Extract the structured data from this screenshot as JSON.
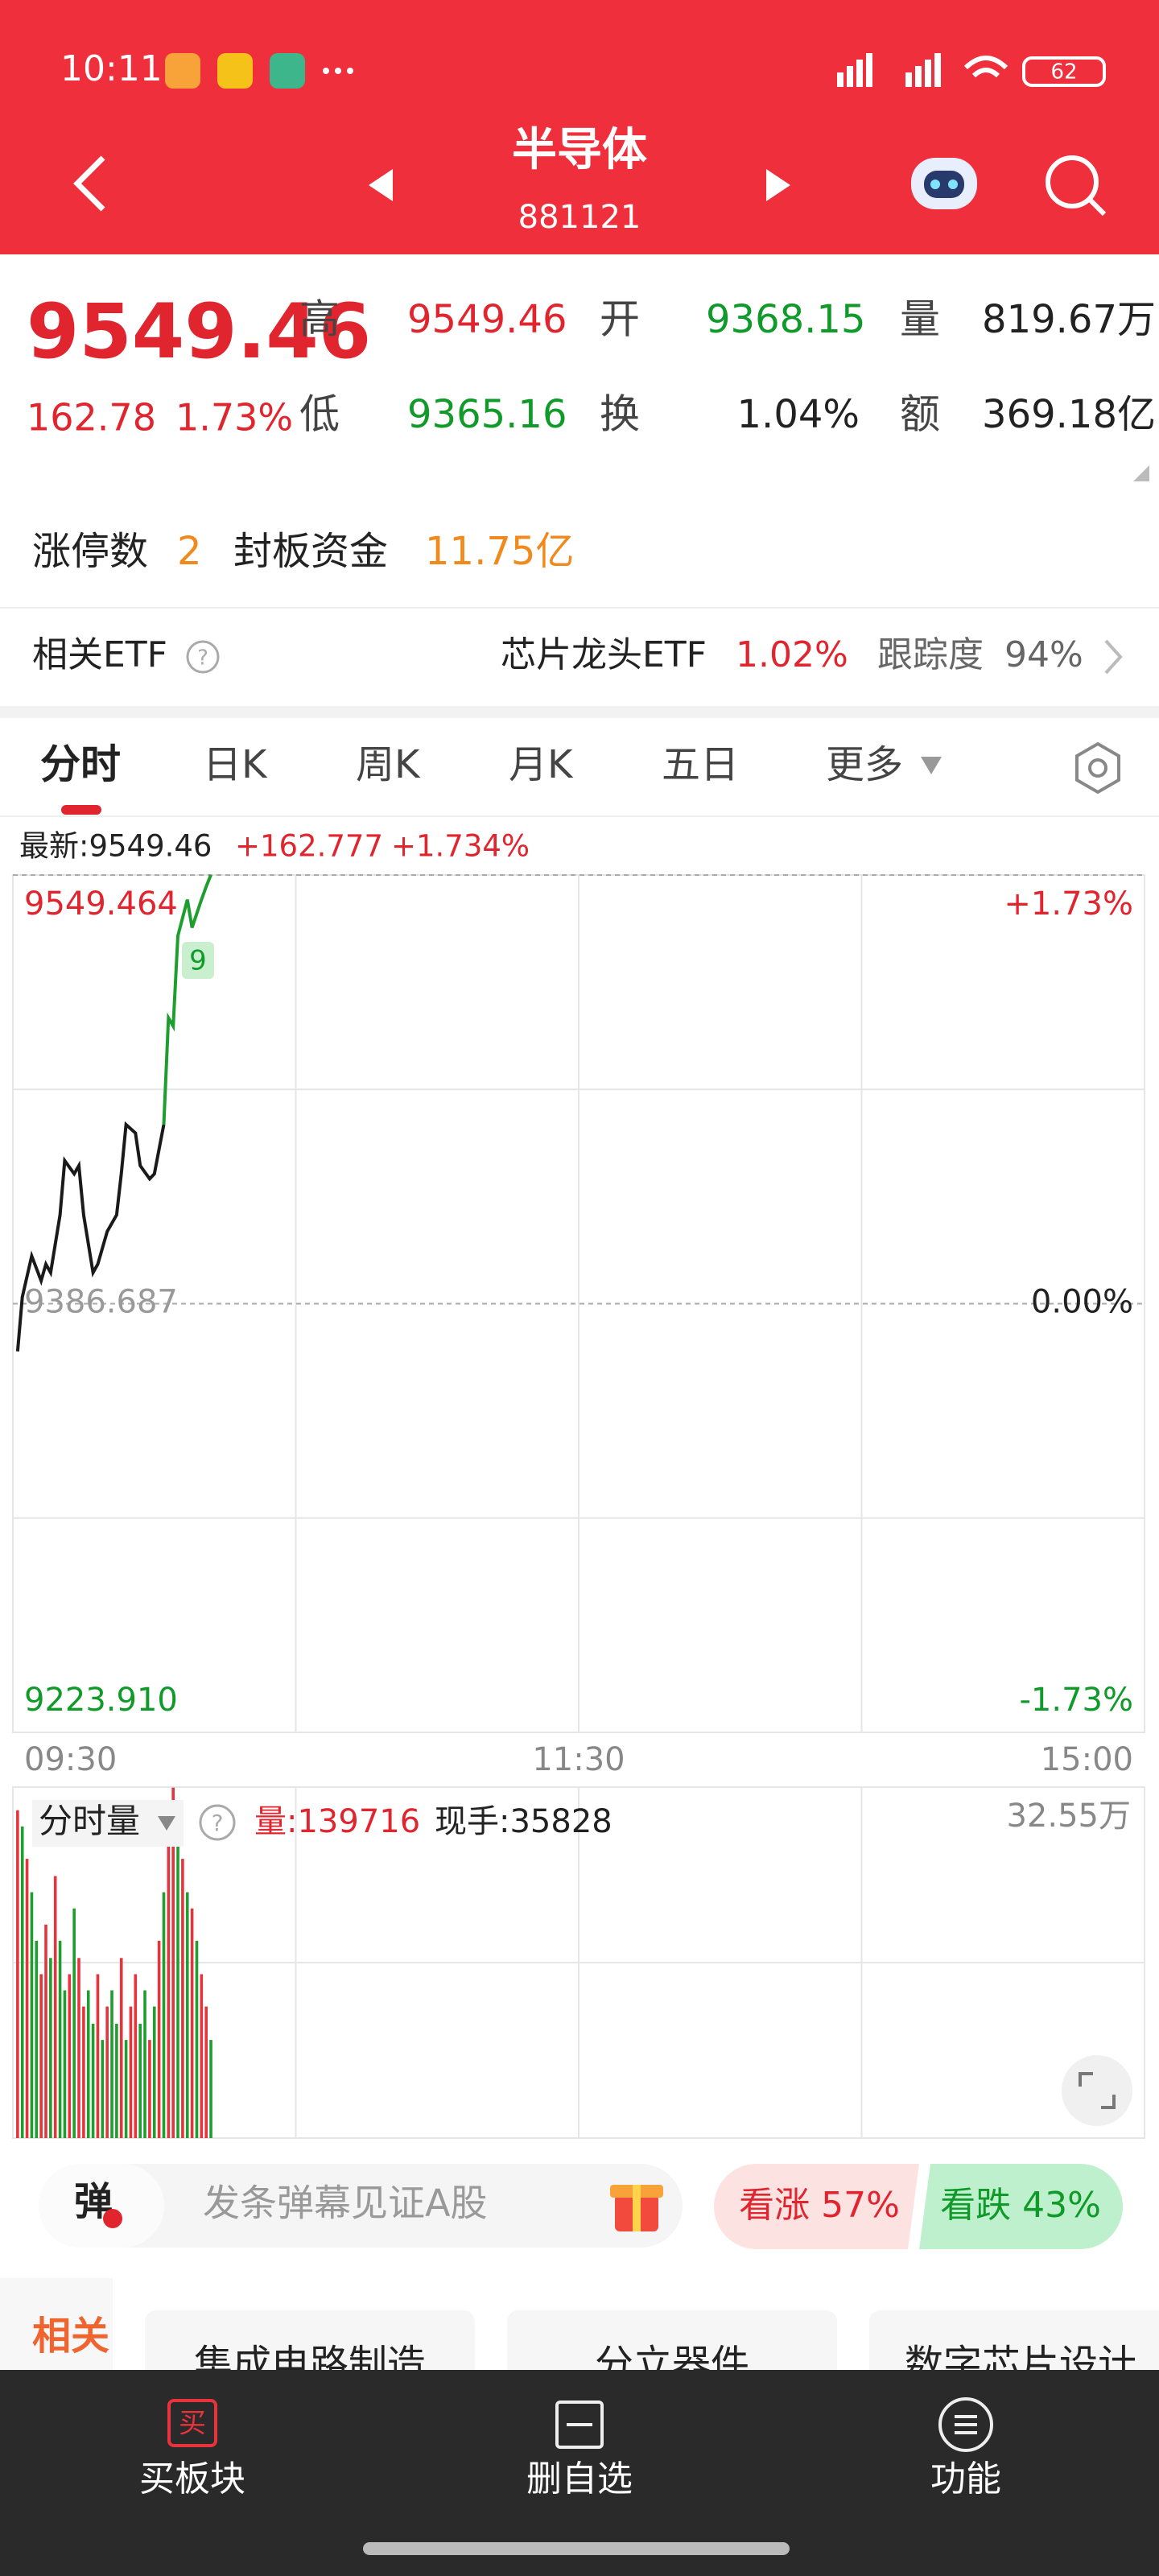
{
  "status_bar": {
    "time": "10:11",
    "battery": "62"
  },
  "header": {
    "title": "半导体",
    "code": "881121"
  },
  "quote": {
    "price": "9549.46",
    "change": "162.78",
    "change_pct": "1.73%",
    "fields": [
      {
        "label": "高",
        "value": "9549.46"
      },
      {
        "label": "开",
        "value": "9368.15"
      },
      {
        "label": "量",
        "value": "819.67万"
      },
      {
        "label": "低",
        "value": "9365.16"
      },
      {
        "label": "换",
        "value": "1.04%"
      },
      {
        "label": "额",
        "value": "369.18亿"
      }
    ]
  },
  "limit_up": {
    "label": "涨停数",
    "count": "2",
    "fund_label": "封板资金",
    "fund": "11.75亿"
  },
  "etf": {
    "label": "相关ETF",
    "name": "芯片龙头ETF",
    "change": "1.02%",
    "track_label": "跟踪度",
    "track": "94%"
  },
  "tabs": [
    "分时",
    "日K",
    "周K",
    "月K",
    "五日",
    "更多"
  ],
  "chart_data": [
    {
      "type": "line",
      "latest": "最新:9549.46",
      "change": "+162.777",
      "change_pct": "+1.734%",
      "annotation": "9",
      "x": [
        1,
        2,
        4,
        6,
        7,
        8,
        10,
        11,
        13,
        14,
        15,
        17,
        18,
        20,
        22,
        23,
        24,
        26,
        27,
        29,
        30,
        31,
        32,
        33,
        34,
        35,
        37,
        38,
        40,
        41,
        42
      ],
      "series": [
        {
          "color": "#1a1a1a",
          "values": [
            9368.6,
            9389.2,
            9404.8,
            9395.4,
            9401.7,
            9398.5,
            9420.4,
            9441.0,
            9436.0,
            9439.1,
            9420.4,
            9398.5,
            9401.7,
            9414.1,
            9420.4,
            9436.0,
            9454.7,
            9451.5,
            9439.1,
            9434.1,
            9436.0,
            9445.3,
            9454.7,
            null,
            null,
            null,
            null,
            null,
            null,
            null,
            null
          ]
        },
        {
          "color": "#1e9e2f",
          "values": [
            null,
            null,
            null,
            null,
            null,
            null,
            null,
            null,
            null,
            null,
            null,
            null,
            null,
            null,
            null,
            null,
            null,
            null,
            null,
            null,
            null,
            null,
            9454.7,
            9495.2,
            9492.1,
            9526.4,
            9540.1,
            9529.5,
            9540.1,
            9545.1,
            9549.5
          ]
        }
      ],
      "xlim": [
        0,
        240
      ],
      "xticks": [
        {
          "value": 0,
          "label": "09:30"
        },
        {
          "value": 120,
          "label": "11:30"
        },
        {
          "value": 240,
          "label": "15:00"
        }
      ],
      "xgrid": [
        60,
        120,
        180
      ],
      "ylim": [
        9223.91,
        9549.464
      ],
      "yticks": [
        9549.464,
        9386.687,
        {
          "value": 9223.91,
          "label": "9223.910"
        }
      ],
      "ygrid": [
        9468.076,
        9305.299
      ],
      "y2lim": [
        -1.73,
        1.73
      ],
      "y2ticks": [
        {
          "value": 1.73,
          "label": "+1.73%"
        },
        {
          "value": 0,
          "label": "0.00%"
        },
        {
          "value": -1.73,
          "label": "-1.73%"
        }
      ]
    },
    {
      "type": "bar",
      "title": "分时量",
      "volume": "量:139716",
      "last_hand": "现手:35828",
      "x": [
        1,
        2,
        3,
        4,
        5,
        6,
        7,
        8,
        9,
        10,
        11,
        12,
        13,
        14,
        15,
        16,
        17,
        18,
        19,
        20,
        21,
        22,
        23,
        24,
        25,
        26,
        27,
        28,
        29,
        30,
        31,
        32,
        33,
        34,
        35,
        36,
        37,
        38,
        39,
        40,
        41,
        42
      ],
      "values": [
        30.4,
        28.9,
        25.9,
        22.8,
        18.3,
        15.2,
        19.8,
        16.7,
        24.3,
        18.3,
        13.7,
        15.2,
        21.3,
        16.7,
        12.2,
        13.7,
        10.6,
        15.2,
        9.1,
        12.2,
        13.7,
        10.6,
        16.7,
        9.1,
        12.2,
        15.2,
        10.6,
        13.7,
        9.1,
        12.2,
        18.3,
        22.8,
        30.4,
        32.5,
        28.9,
        25.9,
        22.8,
        21.3,
        18.3,
        15.2,
        12.2,
        9.1
      ],
      "colors": [
        "#e5343c",
        "#1e9e2f",
        "#e5343c",
        "#1e9e2f",
        "#1e9e2f",
        "#e5343c",
        "#e5343c",
        "#1e9e2f",
        "#e5343c",
        "#1e9e2f",
        "#1e9e2f",
        "#e5343c",
        "#1e9e2f",
        "#e5343c",
        "#e5343c",
        "#1e9e2f",
        "#1e9e2f",
        "#e5343c",
        "#1e9e2f",
        "#e5343c",
        "#1e9e2f",
        "#1e9e2f",
        "#e5343c",
        "#1e9e2f",
        "#e5343c",
        "#e5343c",
        "#1e9e2f",
        "#1e9e2f",
        "#e5343c",
        "#1e9e2f",
        "#e5343c",
        "#1e9e2f",
        "#e5343c",
        "#e5343c",
        "#1e9e2f",
        "#e5343c",
        "#1e9e2f",
        "#e5343c",
        "#1e9e2f",
        "#e5343c",
        "#e5343c",
        "#1e9e2f"
      ],
      "xlim": [
        0,
        240
      ],
      "xgrid": [
        60,
        120,
        180
      ],
      "ylim": [
        0,
        32.55
      ],
      "yticks": [
        {
          "value": 32.55,
          "label": "32.55万"
        }
      ],
      "ygrid": [
        16.275
      ]
    }
  ],
  "danmaku": {
    "icon": "弹",
    "placeholder": "发条弹幕见证A股",
    "bull": "看涨 57%",
    "bear": "看跌 43%"
  },
  "related": {
    "label": "相关",
    "tags": [
      "集成电路制造",
      "分立器件",
      "数字芯片设计"
    ]
  },
  "nav": {
    "buy_icon": "买",
    "items": [
      "买板块",
      "删自选",
      "功能"
    ]
  }
}
